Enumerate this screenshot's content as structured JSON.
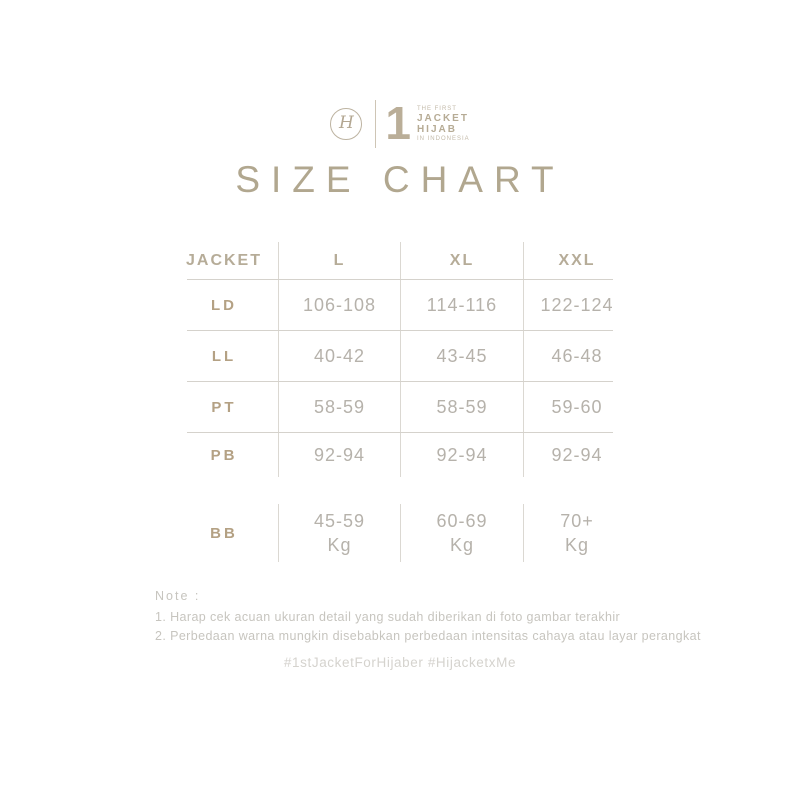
{
  "brand": {
    "monogram": "H",
    "badge_number": "1",
    "badge_top": "THE FIRST",
    "badge_word1": "JACKET",
    "badge_word2": "HIJAB",
    "badge_bottom": "IN INDONESIA"
  },
  "title": "SIZE CHART",
  "table": {
    "col_headers": [
      "JACKET",
      "L",
      "XL",
      "XXL"
    ],
    "rows": [
      {
        "label": "LD",
        "values": [
          "106-108",
          "114-116",
          "122-124"
        ]
      },
      {
        "label": "LL",
        "values": [
          "40-42",
          "43-45",
          "46-48"
        ]
      },
      {
        "label": "PT",
        "values": [
          "58-59",
          "58-59",
          "59-60"
        ]
      },
      {
        "label": "PB",
        "values": [
          "92-94",
          "92-94",
          "92-94"
        ]
      },
      {
        "label": "BB",
        "values": [
          "45-59",
          "60-69",
          "70+"
        ],
        "unit": "Kg"
      }
    ]
  },
  "note": {
    "label": "Note :",
    "items": [
      "1. Harap cek acuan ukuran detail yang sudah diberikan di foto gambar terakhir",
      "2. Perbedaan warna mungkin disebabkan perbedaan intensitas cahaya atau layar perangkat"
    ]
  },
  "hashtags": "#1stJacketForHijaber #HijacketxMe",
  "colors": {
    "accent_tan": "#b1a78f",
    "label_gold": "#b4a184",
    "value_gray": "#b6b2ab",
    "grid_line": "#d8d5cf",
    "note_gray": "#c7c5bf",
    "hashtag_gray": "#d5d3ce",
    "background": "#ffffff"
  },
  "chart_data": {
    "type": "table",
    "title": "SIZE CHART",
    "columns": [
      "JACKET",
      "L",
      "XL",
      "XXL"
    ],
    "rows": [
      [
        "LD",
        "106-108",
        "114-116",
        "122-124"
      ],
      [
        "LL",
        "40-42",
        "43-45",
        "46-48"
      ],
      [
        "PT",
        "58-59",
        "58-59",
        "59-60"
      ],
      [
        "PB",
        "92-94",
        "92-94",
        "92-94"
      ],
      [
        "BB",
        "45-59 Kg",
        "60-69 Kg",
        "70+ Kg"
      ]
    ]
  }
}
